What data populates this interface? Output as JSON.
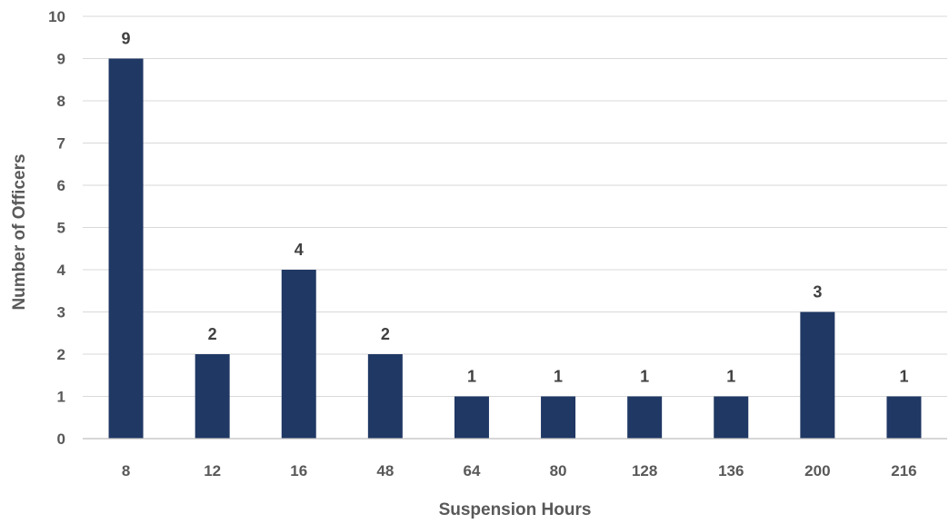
{
  "chart_data": {
    "type": "bar",
    "categories": [
      "8",
      "12",
      "16",
      "48",
      "64",
      "80",
      "128",
      "136",
      "200",
      "216"
    ],
    "values": [
      9,
      2,
      4,
      2,
      1,
      1,
      1,
      1,
      3,
      1
    ],
    "title": "",
    "xlabel": "Suspension Hours",
    "ylabel": "Number of Officers",
    "ylim": [
      0,
      10
    ],
    "yticks": [
      "0",
      "1",
      "2",
      "3",
      "4",
      "5",
      "6",
      "7",
      "8",
      "9",
      "10"
    ],
    "grid": true,
    "bar_color": "#203864",
    "data_labels": [
      "9",
      "2",
      "4",
      "2",
      "1",
      "1",
      "1",
      "1",
      "3",
      "1"
    ]
  }
}
